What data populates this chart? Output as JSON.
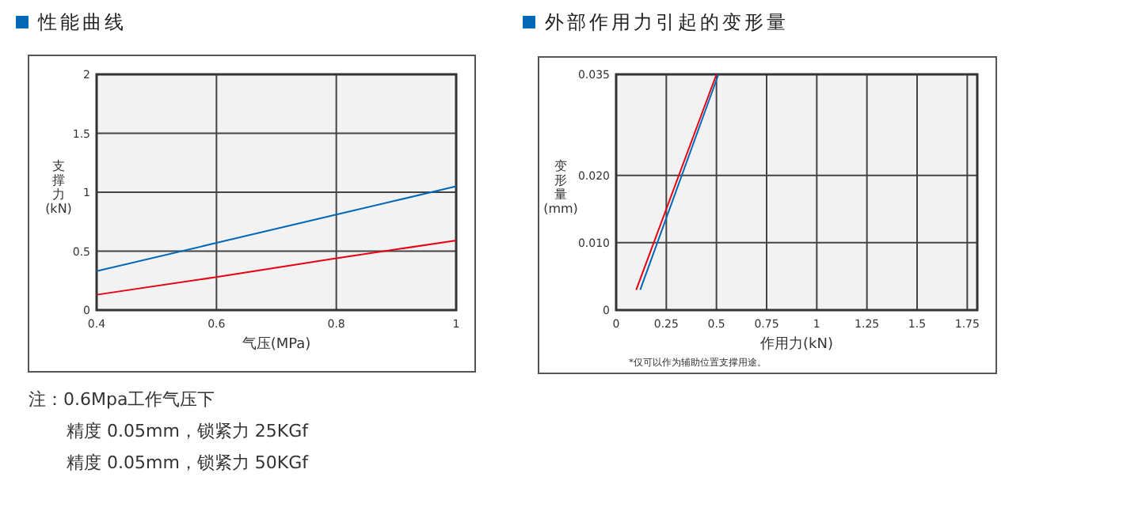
{
  "chart_data": [
    {
      "type": "line",
      "title": "性能曲线",
      "xlabel": "气压(MPa)",
      "ylabel": "支撑力(kN)",
      "xlim": [
        0.4,
        1
      ],
      "xticks": [
        0.4,
        0.6,
        0.8,
        1
      ],
      "ylim": [
        0,
        2
      ],
      "yticks": [
        0,
        0.5,
        1,
        1.5,
        2
      ],
      "grid": true,
      "series": [
        {
          "color": "#0068b7",
          "x": [
            0.4,
            0.6,
            0.8,
            1
          ],
          "values": [
            0.33,
            0.57,
            0.81,
            1.05
          ]
        },
        {
          "color": "#e60012",
          "x": [
            0.4,
            0.6,
            0.8,
            1
          ],
          "values": [
            0.13,
            0.28,
            0.44,
            0.59
          ]
        }
      ],
      "annotations": [
        "注：0.6Mpa工作气压下",
        "精度 0.05mm，锁紧力 25KGf",
        "精度 0.05mm，锁紧力 50KGf"
      ]
    },
    {
      "type": "line",
      "title": "外部作用力引起的变形量",
      "xlabel": "作用力(kN)",
      "ylabel": "变形量(mm)",
      "xlim": [
        0,
        1.8
      ],
      "xticks": [
        0,
        0.25,
        0.5,
        0.75,
        1,
        1.25,
        1.5,
        1.75
      ],
      "ylim": [
        0,
        0.035
      ],
      "yticks": [
        0,
        {
          "value": 0.01,
          "label": "0.010"
        },
        {
          "value": 0.02,
          "label": "0.020"
        },
        0.035
      ],
      "grid": true,
      "series": [
        {
          "color": "#0068b7",
          "x": [
            0.12,
            0.51
          ],
          "values": [
            0.003,
            0.035
          ]
        },
        {
          "color": "#e60012",
          "x": [
            0.1,
            0.5
          ],
          "values": [
            0.003,
            0.035
          ]
        }
      ],
      "annotations": [
        "*仅可以作为辅助位置支撑用途。"
      ]
    }
  ]
}
